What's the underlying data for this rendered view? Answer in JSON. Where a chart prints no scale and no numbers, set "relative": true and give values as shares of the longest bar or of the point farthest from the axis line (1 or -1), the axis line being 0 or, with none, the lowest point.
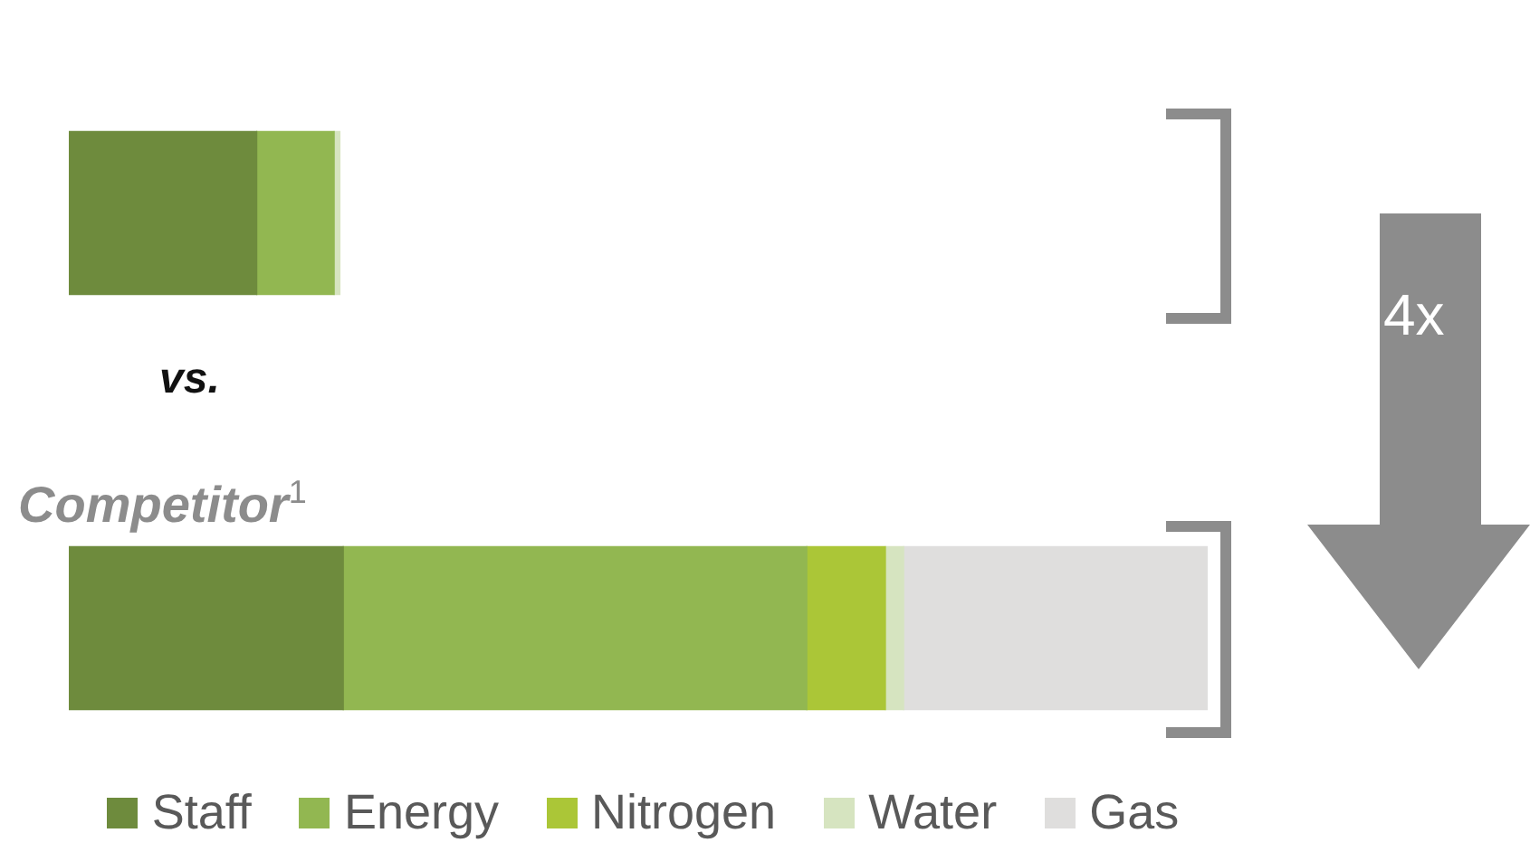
{
  "chart_data": {
    "type": "bar",
    "orientation": "horizontal",
    "stacked": true,
    "relative": true,
    "categories": [
      null,
      "Competitor$^{1}$"
    ],
    "series": [
      {
        "name": "Staff",
        "color": "#6e8b3d",
        "values": [
          0.165,
          0.241
        ]
      },
      {
        "name": "Energy",
        "color": "#92b751",
        "values": [
          0.068,
          0.407
        ]
      },
      {
        "name": "Nitrogen",
        "color": "#abc637",
        "values": [
          null,
          0.069
        ]
      },
      {
        "name": "Water",
        "color": "#d6e4c0",
        "values": [
          0.005,
          0.016
        ]
      },
      {
        "name": "Gas",
        "color": "#dfdedd",
        "values": [
          null,
          0.267
        ]
      }
    ],
    "legend": "bottom",
    "annotations": [
      "vs.",
      "4x"
    ]
  }
}
